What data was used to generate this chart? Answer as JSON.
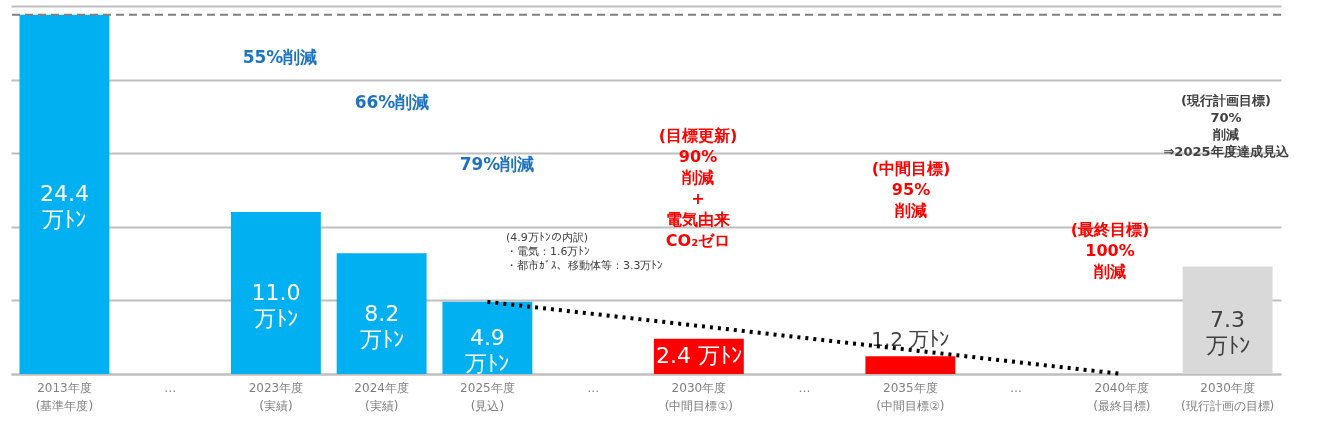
{
  "chart_data": {
    "type": "bar",
    "categories": [
      "2013年度\n(基準年度)",
      "…",
      "2023年度\n(実績)",
      "2024年度\n(実績)",
      "2025年度\n(見込)",
      "…",
      "2030年度\n(中間目標①)",
      "…",
      "2035年度\n(中間目標②)",
      "…",
      "2040年度\n(最終目標)",
      "2030年度\n(現行計画の目標)"
    ],
    "series": [
      {
        "type": "bar",
        "values": [
          24.4,
          null,
          11.0,
          8.2,
          4.9,
          null,
          2.4,
          null,
          1.2,
          null,
          null,
          7.3
        ],
        "colors": [
          "#00b0f0",
          null,
          "#00b0f0",
          "#00b0f0",
          "#00b0f0",
          null,
          "#ff0000",
          null,
          "#ff0000",
          null,
          null,
          "#d9d9d9"
        ],
        "value_labels": [
          "24.4\n万ﾄﾝ",
          null,
          "11.0\n万ﾄﾝ",
          "8.2\n万ﾄﾝ",
          "4.9\n万ﾄﾝ",
          null,
          "2.4 万ﾄﾝ",
          null,
          "1.2 万ﾄﾝ",
          null,
          null,
          "7.3\n万ﾄﾝ"
        ]
      },
      {
        "type": "line",
        "x": [
          "2025年度\n(見込)",
          "2040年度\n(最終目標)"
        ],
        "values": [
          4.9,
          0
        ],
        "color": "#000000",
        "line_style": "dotted"
      }
    ],
    "ylim": [
      0,
      25
    ],
    "yticks": [
      {
        "value": 0,
        "label": null
      },
      {
        "value": 5,
        "label": null
      },
      {
        "value": 10,
        "label": null
      },
      {
        "value": 15,
        "label": null
      },
      {
        "value": 20,
        "label": null
      },
      {
        "value": 25,
        "label": null
      }
    ],
    "tick_labels": "x",
    "grid": "y",
    "ref_lines": [
      {
        "axis": "y",
        "value": 24.4,
        "color": "#808080",
        "line_style": "dashed"
      }
    ],
    "annotations": [
      "55%削減",
      "66%削減",
      "79%削減",
      "(4.9万ﾄﾝの内訳)・電気：1.6万ﾄﾝ・都市ｶﾞｽ、移動体等：3.3万ﾄﾝ",
      "(目標更新)\n90%\n削減\n+\n電気由来\nCO₂ゼロ",
      "(中間目標)\n95%\n削減",
      "(最終目標)\n100%\n削減",
      "(現行計画目標)\n70%\n削減\n⇒2025年度達成見込"
    ]
  }
}
